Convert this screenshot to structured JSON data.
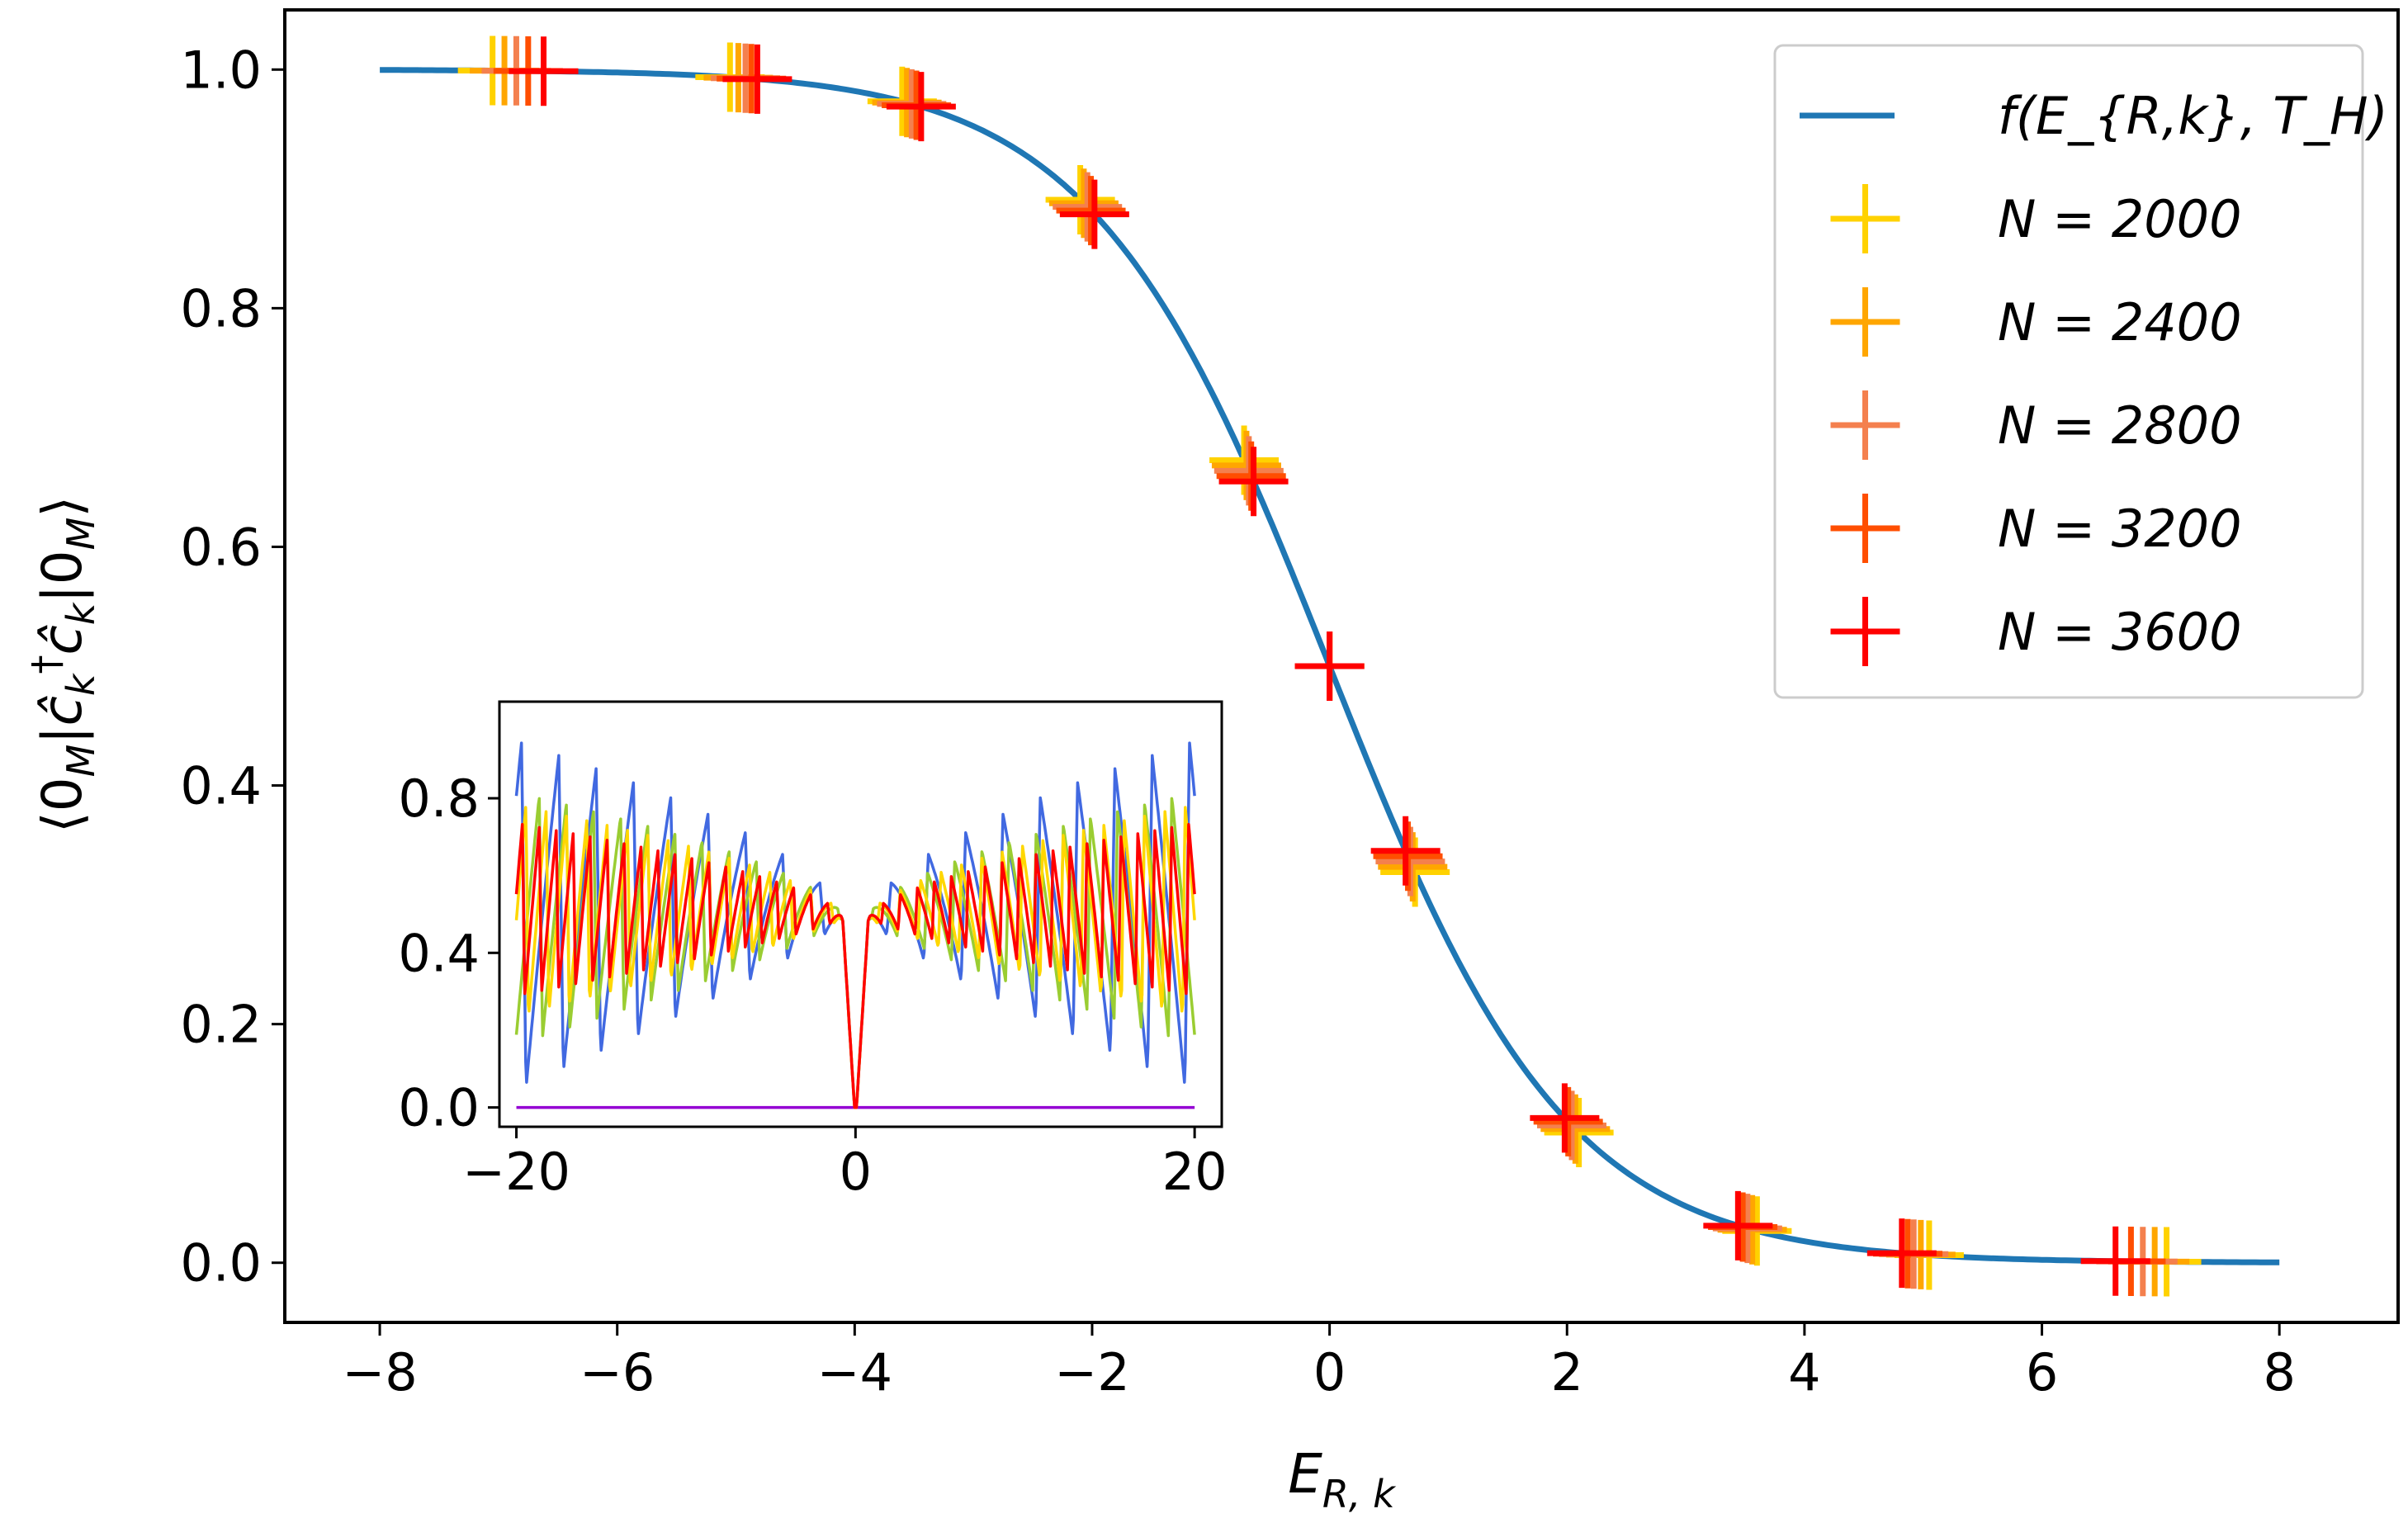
{
  "chart_data": [
    {
      "type": "line+scatter",
      "title": "",
      "xlabel": "E_{R,k}",
      "ylabel": "⟨0_M|ĉ_k^† ĉ_k|0_M⟩",
      "xlim": [
        -8.8,
        9.0
      ],
      "ylim": [
        -0.05,
        1.05
      ],
      "xticks": [
        -8,
        -6,
        -4,
        -2,
        0,
        2,
        4,
        6,
        8
      ],
      "xtick_labels": [
        "−8",
        "−6",
        "−4",
        "−2",
        "0",
        "2",
        "4",
        "6",
        "8"
      ],
      "yticks": [
        0.0,
        0.2,
        0.4,
        0.6,
        0.8,
        1.0
      ],
      "ytick_labels": [
        "0.0",
        "0.2",
        "0.4",
        "0.6",
        "0.8",
        "1.0"
      ],
      "legend_position": "top-right",
      "curve": {
        "name": "f(E_{R,k}, T_H)",
        "function": "1/(1+exp(x))",
        "x_range": [
          -8,
          8
        ],
        "color": "#1f77b4"
      },
      "series": [
        {
          "name": "N = 2000",
          "color": "#ffd200",
          "x": [
            -7.05,
            -5.05,
            -3.6,
            -2.1,
            -0.72,
            0.0,
            0.72,
            2.1,
            3.6,
            5.05,
            7.05
          ]
        },
        {
          "name": "N = 2400",
          "color": "#ffa600",
          "x": [
            -6.95,
            -4.98,
            -3.56,
            -2.07,
            -0.7,
            0.0,
            0.7,
            2.07,
            3.56,
            4.98,
            6.95
          ]
        },
        {
          "name": "N = 2800",
          "color": "#f4804e",
          "x": [
            -6.85,
            -4.92,
            -3.52,
            -2.04,
            -0.68,
            0.0,
            0.68,
            2.04,
            3.52,
            4.92,
            6.85
          ]
        },
        {
          "name": "N = 3200",
          "color": "#ff4e00",
          "x": [
            -6.75,
            -4.87,
            -3.48,
            -2.01,
            -0.66,
            0.0,
            0.66,
            2.01,
            3.48,
            4.87,
            6.75
          ]
        },
        {
          "name": "N = 3600",
          "color": "#ff0000",
          "x": [
            -6.62,
            -4.82,
            -3.44,
            -1.98,
            -0.64,
            0.0,
            0.64,
            1.98,
            3.44,
            4.82,
            6.62
          ]
        }
      ],
      "legend": [
        "f(E_{R,k}, T_H)",
        "N = 2000",
        "N = 2400",
        "N = 2800",
        "N = 3200",
        "N = 3600"
      ]
    },
    {
      "type": "line",
      "position": "inset",
      "xlim": [
        -21,
        21.6
      ],
      "ylim": [
        -0.05,
        1.05
      ],
      "xticks": [
        -20,
        0,
        20
      ],
      "xtick_labels": [
        "−20",
        "0",
        "20"
      ],
      "yticks": [
        0.0,
        0.4,
        0.8
      ],
      "ytick_labels": [
        "0.0",
        "0.4",
        "0.8"
      ],
      "series": [
        {
          "color": "#9400d3",
          "baseline": 0.0,
          "peak_envelope": 0.0,
          "period": 2.0
        },
        {
          "color": "#4169e1",
          "baseline": 0.04,
          "peak_envelope": 0.95,
          "period": 2.2
        },
        {
          "color": "#9acd32",
          "baseline": 0.16,
          "peak_envelope": 0.82,
          "period": 1.6
        },
        {
          "color": "#ffd700",
          "baseline": 0.22,
          "peak_envelope": 0.79,
          "period": 1.2
        },
        {
          "color": "#ff0000",
          "baseline": 0.28,
          "peak_envelope": 0.74,
          "period": 1.0
        }
      ],
      "near_zero_value": 0.49
    }
  ]
}
